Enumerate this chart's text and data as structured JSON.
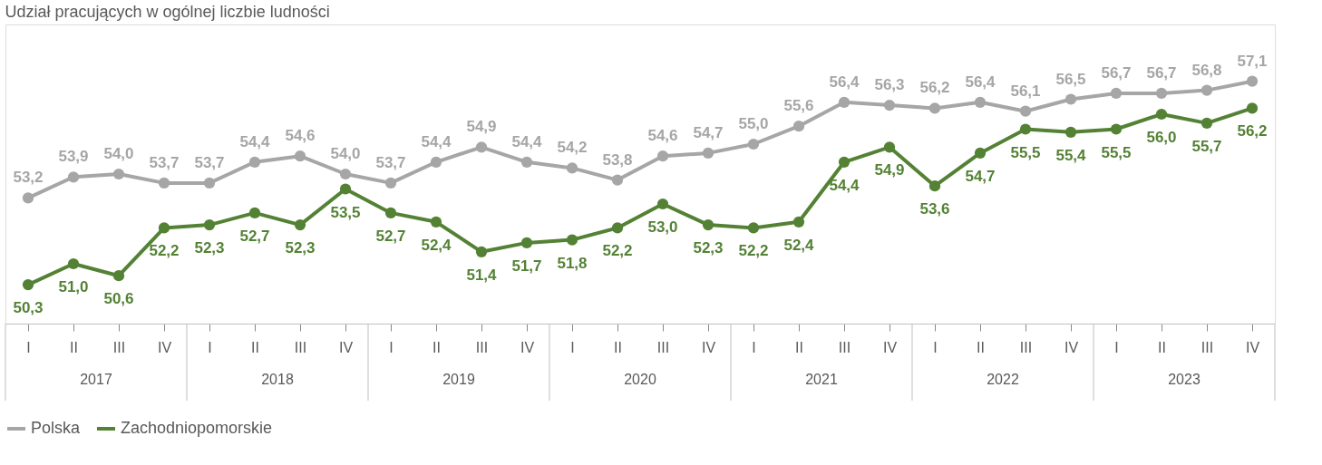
{
  "chart_data": {
    "type": "line",
    "title": "Udział pracujących w ogólnej liczbie ludności",
    "categories": [
      "I",
      "II",
      "III",
      "IV",
      "I",
      "II",
      "III",
      "IV",
      "I",
      "II",
      "III",
      "IV",
      "I",
      "II",
      "III",
      "IV",
      "I",
      "II",
      "III",
      "IV",
      "I",
      "II",
      "III",
      "IV",
      "I",
      "II",
      "III",
      "IV"
    ],
    "annotations": [
      "2017",
      "2018",
      "2019",
      "2020",
      "2021",
      "2022",
      "2023"
    ],
    "series": [
      {
        "name": "Polska",
        "color": "#a6a6a6",
        "values": [
          53.2,
          53.9,
          54.0,
          53.7,
          53.7,
          54.4,
          54.6,
          54.0,
          53.7,
          54.4,
          54.9,
          54.4,
          54.2,
          53.8,
          54.6,
          54.7,
          55.0,
          55.6,
          56.4,
          56.3,
          56.2,
          56.4,
          56.1,
          56.5,
          56.7,
          56.7,
          56.8,
          57.1
        ],
        "value_labels": [
          "53,2",
          "53,9",
          "54,0",
          "53,7",
          "53,7",
          "54,4",
          "54,6",
          "54,0",
          "53,7",
          "54,4",
          "54,9",
          "54,4",
          "54,2",
          "53,8",
          "54,6",
          "54,7",
          "55,0",
          "55,6",
          "56,4",
          "56,3",
          "56,2",
          "56,4",
          "56,1",
          "56,5",
          "56,7",
          "56,7",
          "56,8",
          "57,1"
        ]
      },
      {
        "name": "Zachodniopomorskie",
        "color": "#548235",
        "values": [
          50.3,
          51.0,
          50.6,
          52.2,
          52.3,
          52.7,
          52.3,
          53.5,
          52.7,
          52.4,
          51.4,
          51.7,
          51.8,
          52.2,
          53.0,
          52.3,
          52.2,
          52.4,
          54.4,
          54.9,
          53.6,
          54.7,
          55.5,
          55.4,
          55.5,
          56.0,
          55.7,
          56.2
        ],
        "value_labels": [
          "50,3",
          "51,0",
          "50,6",
          "52,2",
          "52,3",
          "52,7",
          "52,3",
          "53,5",
          "52,7",
          "52,4",
          "51,4",
          "51,7",
          "51,8",
          "52,2",
          "53,0",
          "52,3",
          "52,2",
          "52,4",
          "54,4",
          "54,9",
          "53,6",
          "54,7",
          "55,5",
          "55,4",
          "55,5",
          "56,0",
          "55,7",
          "56,2"
        ]
      }
    ],
    "line_style": "solid",
    "marker": "circle",
    "grid": false,
    "legend": "bottom"
  }
}
